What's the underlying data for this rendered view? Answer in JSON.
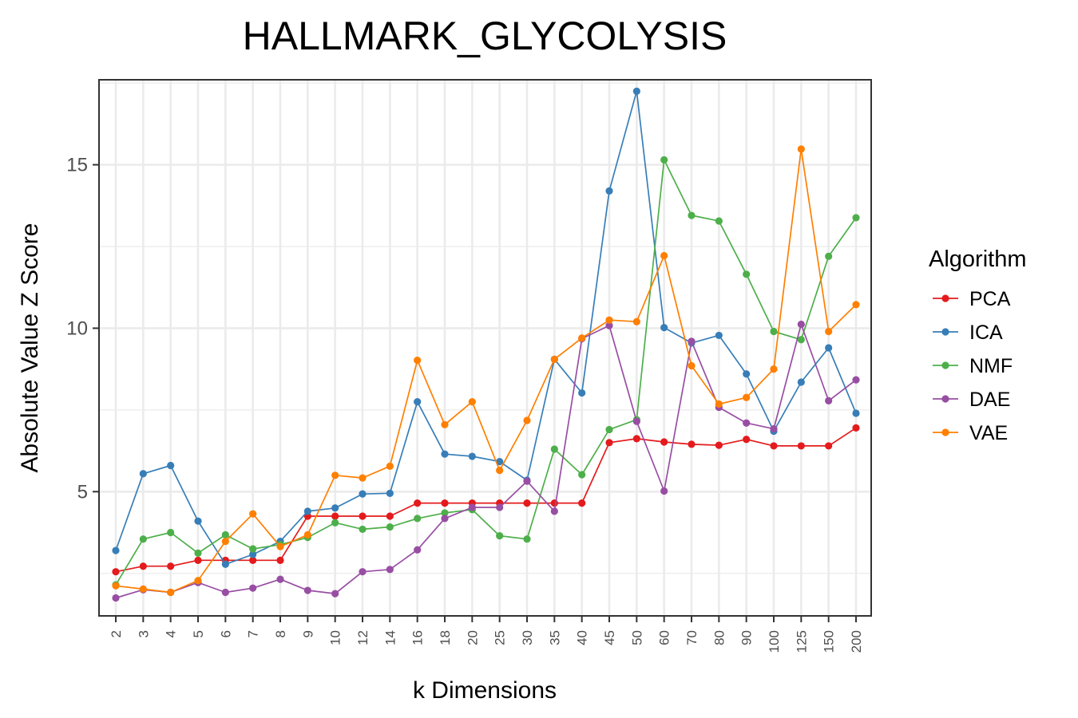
{
  "chart_data": {
    "type": "line",
    "title": "HALLMARK_GLYCOLYSIS",
    "xlabel": "k Dimensions",
    "ylabel": "Absolute Value Z Score",
    "categories": [
      "2",
      "3",
      "4",
      "5",
      "6",
      "7",
      "8",
      "9",
      "10",
      "12",
      "14",
      "16",
      "18",
      "20",
      "25",
      "30",
      "35",
      "40",
      "45",
      "50",
      "60",
      "70",
      "80",
      "90",
      "100",
      "125",
      "150",
      "200"
    ],
    "ylim": [
      1.2,
      17.6
    ],
    "yticks": [
      5,
      10,
      15
    ],
    "grid": true,
    "legend_title": "Algorithm",
    "legend_position": "right",
    "series": [
      {
        "name": "PCA",
        "color": "#e41a1c",
        "values": [
          2.55,
          2.72,
          2.72,
          2.9,
          2.9,
          2.9,
          2.9,
          4.25,
          4.25,
          4.25,
          4.25,
          4.65,
          4.65,
          4.65,
          4.65,
          4.65,
          4.65,
          4.65,
          6.5,
          6.62,
          6.52,
          6.45,
          6.42,
          6.6,
          6.4,
          6.4,
          6.4,
          6.95
        ]
      },
      {
        "name": "ICA",
        "color": "#377eb8",
        "values": [
          3.2,
          5.55,
          5.8,
          4.1,
          2.78,
          3.08,
          3.48,
          4.4,
          4.5,
          4.93,
          4.95,
          7.75,
          6.15,
          6.08,
          5.92,
          5.35,
          9.05,
          8.02,
          14.2,
          17.25,
          10.02,
          9.55,
          9.78,
          8.6,
          6.85,
          8.35,
          9.4,
          7.4
        ]
      },
      {
        "name": "NMF",
        "color": "#4daf4a",
        "values": [
          2.15,
          3.55,
          3.75,
          3.12,
          3.68,
          3.25,
          3.38,
          3.6,
          4.05,
          3.85,
          3.92,
          4.18,
          4.35,
          4.45,
          3.65,
          3.55,
          6.3,
          5.52,
          6.9,
          7.2,
          15.15,
          13.45,
          13.28,
          11.65,
          9.9,
          9.65,
          12.2,
          13.38
        ]
      },
      {
        "name": "DAE",
        "color": "#984ea3",
        "values": [
          1.75,
          2.0,
          1.92,
          2.22,
          1.92,
          2.05,
          2.32,
          1.98,
          1.88,
          2.55,
          2.62,
          3.22,
          4.18,
          4.52,
          4.52,
          5.32,
          4.4,
          9.68,
          10.08,
          7.15,
          5.02,
          9.6,
          7.58,
          7.1,
          6.92,
          10.12,
          7.78,
          8.42
        ]
      },
      {
        "name": "VAE",
        "color": "#ff7f00",
        "values": [
          2.12,
          2.02,
          1.92,
          2.28,
          3.48,
          4.32,
          3.32,
          3.68,
          5.5,
          5.42,
          5.78,
          9.02,
          7.05,
          7.75,
          5.65,
          7.18,
          9.05,
          9.7,
          10.25,
          10.2,
          12.22,
          8.85,
          7.68,
          7.88,
          8.75,
          15.48,
          9.9,
          10.72
        ]
      }
    ]
  }
}
